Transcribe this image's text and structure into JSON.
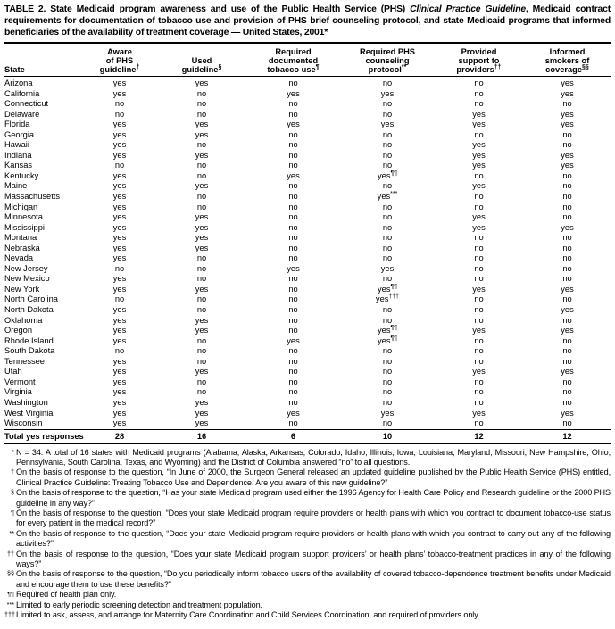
{
  "title": {
    "prefix": "TABLE 2. State Medicaid program awareness and use of the Public Health Service (PHS) ",
    "italic": "Clinical Practice Guideline",
    "suffix": ", Medicaid contract requirements for documentation of tobacco use and provision of PHS brief counseling protocol, and state Medicaid programs that informed beneficiaries of the availability of treatment coverage — United States, 2001*"
  },
  "table": {
    "columns": [
      {
        "id": "state",
        "lines": [
          "State"
        ],
        "marker": ""
      },
      {
        "id": "aware",
        "lines": [
          "Aware",
          "of PHS",
          "guideline"
        ],
        "marker": "†"
      },
      {
        "id": "used",
        "lines": [
          "Used",
          "guideline"
        ],
        "marker": "§"
      },
      {
        "id": "documented",
        "lines": [
          "Required",
          "documented",
          "tobacco use"
        ],
        "marker": "¶"
      },
      {
        "id": "counseling",
        "lines": [
          "Required PHS",
          "counseling",
          "protocol"
        ],
        "marker": "**"
      },
      {
        "id": "support",
        "lines": [
          "Provided",
          "support to",
          "providers"
        ],
        "marker": "††"
      },
      {
        "id": "informed",
        "lines": [
          "Informed",
          "smokers of",
          "coverage"
        ],
        "marker": "§§"
      }
    ],
    "rows": [
      {
        "state": "Arizona",
        "values": [
          "yes",
          "yes",
          "no",
          "no",
          "no",
          "yes"
        ]
      },
      {
        "state": "California",
        "values": [
          "yes",
          "no",
          "yes",
          "yes",
          "no",
          "yes"
        ]
      },
      {
        "state": "Connecticut",
        "values": [
          "no",
          "no",
          "no",
          "no",
          "no",
          "no"
        ]
      },
      {
        "state": "Delaware",
        "values": [
          "no",
          "no",
          "no",
          "no",
          "yes",
          "yes"
        ]
      },
      {
        "state": "Florida",
        "values": [
          "yes",
          "yes",
          "yes",
          "yes",
          "yes",
          "yes"
        ]
      },
      {
        "state": "Georgia",
        "values": [
          "yes",
          "yes",
          "no",
          "no",
          "no",
          "no"
        ]
      },
      {
        "state": "Hawaii",
        "values": [
          "yes",
          "no",
          "no",
          "no",
          "yes",
          "no"
        ]
      },
      {
        "state": "Indiana",
        "values": [
          "yes",
          "yes",
          "no",
          "no",
          "yes",
          "yes"
        ]
      },
      {
        "state": "Kansas",
        "values": [
          "no",
          "no",
          "no",
          "no",
          "yes",
          "yes"
        ]
      },
      {
        "state": "Kentucky",
        "values": [
          "yes",
          "no",
          "yes",
          "yes¶¶",
          "no",
          "no"
        ]
      },
      {
        "state": "Maine",
        "values": [
          "yes",
          "yes",
          "no",
          "no",
          "yes",
          "no"
        ]
      },
      {
        "state": "Massachusetts",
        "values": [
          "yes",
          "no",
          "no",
          "yes***",
          "no",
          "no"
        ]
      },
      {
        "state": "Michigan",
        "values": [
          "yes",
          "no",
          "no",
          "no",
          "no",
          "no"
        ]
      },
      {
        "state": "Minnesota",
        "values": [
          "yes",
          "yes",
          "no",
          "no",
          "yes",
          "no"
        ]
      },
      {
        "state": "Mississippi",
        "values": [
          "yes",
          "yes",
          "no",
          "no",
          "yes",
          "yes"
        ]
      },
      {
        "state": "Montana",
        "values": [
          "yes",
          "yes",
          "no",
          "no",
          "no",
          "no"
        ]
      },
      {
        "state": "Nebraska",
        "values": [
          "yes",
          "yes",
          "no",
          "no",
          "no",
          "no"
        ]
      },
      {
        "state": "Nevada",
        "values": [
          "yes",
          "no",
          "no",
          "no",
          "no",
          "no"
        ]
      },
      {
        "state": "New Jersey",
        "values": [
          "no",
          "no",
          "yes",
          "yes",
          "no",
          "no"
        ]
      },
      {
        "state": "New Mexico",
        "values": [
          "yes",
          "no",
          "no",
          "no",
          "no",
          "no"
        ]
      },
      {
        "state": "New York",
        "values": [
          "yes",
          "yes",
          "no",
          "yes¶¶",
          "yes",
          "yes"
        ]
      },
      {
        "state": "North Carolina",
        "values": [
          "no",
          "no",
          "no",
          "yes†††",
          "no",
          "no"
        ]
      },
      {
        "state": "North Dakota",
        "values": [
          "yes",
          "no",
          "no",
          "no",
          "no",
          "yes"
        ]
      },
      {
        "state": "Oklahoma",
        "values": [
          "yes",
          "yes",
          "no",
          "no",
          "no",
          "no"
        ]
      },
      {
        "state": "Oregon",
        "values": [
          "yes",
          "yes",
          "no",
          "yes¶¶",
          "yes",
          "yes"
        ]
      },
      {
        "state": "Rhode Island",
        "values": [
          "yes",
          "no",
          "yes",
          "yes¶¶",
          "no",
          "no"
        ]
      },
      {
        "state": "South Dakota",
        "values": [
          "no",
          "no",
          "no",
          "no",
          "no",
          "no"
        ]
      },
      {
        "state": "Tennessee",
        "values": [
          "yes",
          "no",
          "no",
          "no",
          "no",
          "no"
        ]
      },
      {
        "state": "Utah",
        "values": [
          "yes",
          "yes",
          "no",
          "no",
          "yes",
          "yes"
        ]
      },
      {
        "state": "Vermont",
        "values": [
          "yes",
          "no",
          "no",
          "no",
          "no",
          "no"
        ]
      },
      {
        "state": "Virginia",
        "values": [
          "yes",
          "no",
          "no",
          "no",
          "no",
          "no"
        ]
      },
      {
        "state": "Washington",
        "values": [
          "yes",
          "yes",
          "no",
          "no",
          "no",
          "no"
        ]
      },
      {
        "state": "West Virginia",
        "values": [
          "yes",
          "yes",
          "yes",
          "yes",
          "yes",
          "yes"
        ]
      },
      {
        "state": "Wisconsin",
        "values": [
          "yes",
          "yes",
          "no",
          "no",
          "no",
          "no"
        ]
      }
    ],
    "total": {
      "label": "Total yes responses",
      "values": [
        "28",
        "16",
        "6",
        "10",
        "12",
        "12"
      ]
    }
  },
  "footnotes": [
    {
      "marker": "*",
      "text": "N = 34. A total of 16 states with Medicaid programs (Alabama, Alaska, Arkansas, Colorado, Idaho, Illinois, Iowa, Louisiana, Maryland, Missouri, New Hampshire, Ohio, Pennsylvania, South Carolina, Texas, and Wyoming) and the District of Columbia answered “no” to all questions."
    },
    {
      "marker": "†",
      "text": "On the basis of response to the question, “In June of 2000, the Surgeon General released an updated guideline published by the Public Health Service (PHS) entitled, Clinical Practice Guideline: Treating Tobacco Use and Dependence. Are you aware of this new guideline?”"
    },
    {
      "marker": "§",
      "text": "On the basis of response to the question, “Has your state Medicaid program used either the 1996 Agency for Health Care Policy and Research guideline or the 2000 PHS guideline in any way?”"
    },
    {
      "marker": "¶",
      "text": "On the basis of response to the question, “Does your state Medicaid program require providers or health plans with which you contract to document tobacco-use status for every patient in the medical record?”"
    },
    {
      "marker": "**",
      "text": "On the basis of response to the question, “Does your state Medicaid program require providers or health plans with which you contract to carry out any of the following activities?”"
    },
    {
      "marker": "††",
      "text": "On the basis of response to the question, “Does your state Medicaid program support providers’ or health plans’ tobacco-treatment practices in any of the following ways?”"
    },
    {
      "marker": "§§",
      "text": "On the basis of response to the question, “Do you periodically inform tobacco users of the availability of covered tobacco-dependence treatment benefits under Medicaid and encourage them to use these benefits?”"
    },
    {
      "marker": "¶¶",
      "text": "Required of health plan only."
    },
    {
      "marker": "***",
      "text": "Limited to early periodic screening detection and treatment population."
    },
    {
      "marker": "†††",
      "text": "Limited to ask, assess, and arrange for Maternity Care Coordination and Child Services Coordination, and required of providers only."
    }
  ]
}
